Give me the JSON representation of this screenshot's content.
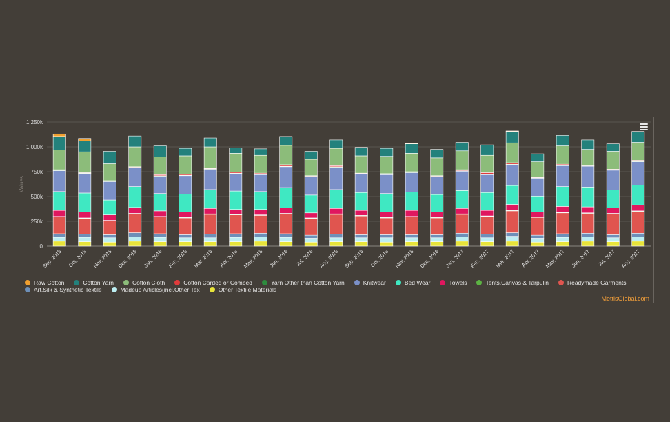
{
  "chart_data": {
    "type": "bar",
    "stacked": true,
    "ylabel": "Values",
    "ylim": [
      0,
      1250000
    ],
    "yticks": [
      0,
      250000,
      500000,
      750000,
      1000000,
      1250000
    ],
    "ytick_labels": [
      "0",
      "250k",
      "500k",
      "750k",
      "1 000k",
      "1 250k"
    ],
    "categories": [
      "Sep, 2015",
      "Oct, 2015",
      "Nov, 2015",
      "Dec, 2015",
      "Jan, 2016",
      "Feb, 2016",
      "Mar, 2016",
      "Apr, 2016",
      "May, 2016",
      "Jun, 2016",
      "Jul, 2016",
      "Aug, 2016",
      "Sep, 2016",
      "Oct, 2016",
      "Nov, 2016",
      "Dec, 2016",
      "Jan, 2017",
      "Feb, 2017",
      "Mar, 2017",
      "Apr, 2017",
      "May, 2017",
      "Jun, 2017",
      "Jul, 2017",
      "Aug, 2017"
    ],
    "series": [
      {
        "name": "Other Textile Materials",
        "color": "#e8e43a",
        "values": [
          50000,
          45000,
          40000,
          50000,
          45000,
          45000,
          45000,
          45000,
          50000,
          45000,
          40000,
          45000,
          45000,
          40000,
          45000,
          45000,
          50000,
          45000,
          50000,
          40000,
          45000,
          50000,
          45000,
          50000
        ]
      },
      {
        "name": "Madeup Articles(incl.Other Tex",
        "color": "#bdeef2",
        "values": [
          40000,
          45000,
          45000,
          45000,
          45000,
          40000,
          40000,
          45000,
          45000,
          45000,
          40000,
          40000,
          40000,
          45000,
          40000,
          40000,
          45000,
          40000,
          50000,
          40000,
          45000,
          45000,
          40000,
          45000
        ]
      },
      {
        "name": "Art,Silk & Synthetic Textile",
        "color": "#6d8fb8",
        "values": [
          35000,
          30000,
          30000,
          40000,
          35000,
          30000,
          35000,
          35000,
          35000,
          35000,
          30000,
          35000,
          30000,
          30000,
          30000,
          30000,
          35000,
          35000,
          35000,
          30000,
          35000,
          35000,
          30000,
          35000
        ]
      },
      {
        "name": "Readymade Garments",
        "color": "#e0554f",
        "values": [
          170000,
          160000,
          140000,
          190000,
          170000,
          170000,
          200000,
          190000,
          180000,
          200000,
          170000,
          200000,
          190000,
          170000,
          180000,
          170000,
          190000,
          180000,
          220000,
          180000,
          210000,
          200000,
          210000,
          220000
        ]
      },
      {
        "name": "Tents,Canvas & Tarpulin",
        "color": "#5cb343",
        "values": [
          5000,
          5000,
          5000,
          5000,
          5000,
          5000,
          5000,
          5000,
          5000,
          5000,
          5000,
          5000,
          5000,
          5000,
          5000,
          5000,
          5000,
          5000,
          5000,
          5000,
          5000,
          5000,
          5000,
          5000
        ]
      },
      {
        "name": "Towels",
        "color": "#e0175f",
        "values": [
          60000,
          60000,
          55000,
          60000,
          55000,
          55000,
          55000,
          50000,
          55000,
          55000,
          50000,
          55000,
          50000,
          55000,
          60000,
          55000,
          55000,
          55000,
          60000,
          50000,
          60000,
          60000,
          55000,
          60000
        ]
      },
      {
        "name": "Bed Wear",
        "color": "#3fe8c2",
        "values": [
          190000,
          190000,
          150000,
          210000,
          175000,
          180000,
          190000,
          185000,
          180000,
          205000,
          180000,
          190000,
          180000,
          185000,
          185000,
          175000,
          180000,
          180000,
          190000,
          160000,
          200000,
          200000,
          180000,
          200000
        ]
      },
      {
        "name": "Knitwear",
        "color": "#7b90c8",
        "values": [
          210000,
          195000,
          185000,
          190000,
          175000,
          185000,
          205000,
          175000,
          170000,
          210000,
          185000,
          225000,
          185000,
          190000,
          195000,
          180000,
          195000,
          180000,
          210000,
          180000,
          210000,
          210000,
          200000,
          235000
        ]
      },
      {
        "name": "Yarn Other than Cotton Yarn",
        "color": "#2e8b3e",
        "values": [
          5000,
          5000,
          5000,
          5000,
          5000,
          5000,
          5000,
          5000,
          5000,
          5000,
          5000,
          5000,
          5000,
          5000,
          5000,
          5000,
          5000,
          5000,
          5000,
          5000,
          5000,
          5000,
          5000,
          5000
        ]
      },
      {
        "name": "Cotton Carded or Combed",
        "color": "#e03b3b",
        "values": [
          5000,
          5000,
          5000,
          5000,
          10000,
          10000,
          5000,
          10000,
          10000,
          15000,
          5000,
          10000,
          5000,
          5000,
          5000,
          5000,
          10000,
          15000,
          15000,
          5000,
          10000,
          5000,
          5000,
          10000
        ]
      },
      {
        "name": "Cotton Cloth",
        "color": "#8cbc7a",
        "values": [
          200000,
          210000,
          170000,
          200000,
          180000,
          185000,
          215000,
          190000,
          180000,
          195000,
          165000,
          175000,
          175000,
          175000,
          185000,
          180000,
          190000,
          175000,
          200000,
          155000,
          185000,
          160000,
          180000,
          180000
        ]
      },
      {
        "name": "Cotton Yarn",
        "color": "#23817c",
        "values": [
          135000,
          110000,
          125000,
          110000,
          110000,
          75000,
          90000,
          55000,
          65000,
          90000,
          80000,
          85000,
          85000,
          80000,
          95000,
          85000,
          85000,
          105000,
          115000,
          80000,
          105000,
          95000,
          75000,
          105000
        ]
      },
      {
        "name": "Raw Cotton",
        "color": "#f0a030",
        "values": [
          25000,
          25000,
          0,
          0,
          0,
          0,
          0,
          0,
          0,
          0,
          0,
          0,
          0,
          0,
          5000,
          0,
          0,
          0,
          5000,
          0,
          0,
          0,
          0,
          5000
        ]
      }
    ],
    "legend_order": [
      "Raw Cotton",
      "Cotton Yarn",
      "Cotton Cloth",
      "Cotton Carded or Combed",
      "Yarn Other than Cotton Yarn",
      "Knitwear",
      "Bed Wear",
      "Towels",
      "Tents,Canvas & Tarpulin",
      "Readymade Garments",
      "Art,Silk & Synthetic Textile",
      "Madeup Articles(incl.Other Tex",
      "Other Textile Materials"
    ],
    "legend_position": "bottom"
  },
  "credit": "MettisGlobal.com",
  "menu_icon": "hamburger-menu-icon"
}
